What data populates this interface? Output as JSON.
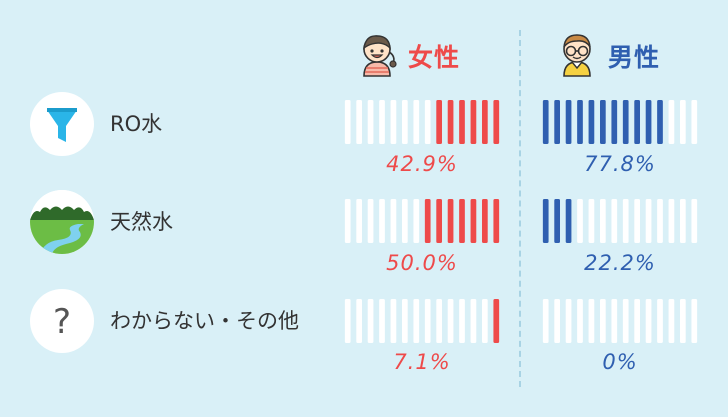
{
  "chart_data": {
    "type": "bar",
    "categories": [
      "RO水",
      "天然水",
      "わからない・その他"
    ],
    "series": [
      {
        "name": "女性",
        "values": [
          42.9,
          50.0,
          7.1
        ],
        "labels": [
          "42.9%",
          "50.0%",
          "7.1%"
        ],
        "color": "#ee4a4a"
      },
      {
        "name": "男性",
        "values": [
          77.8,
          22.2,
          0
        ],
        "labels": [
          "77.8%",
          "22.2%",
          "0%"
        ],
        "color": "#2f5fb0"
      }
    ],
    "ylim": [
      0,
      100
    ],
    "segments": 14,
    "empty_color": "#ffffff"
  },
  "icons": {
    "female": "girl-avatar-icon",
    "male": "boy-with-glasses-avatar-icon",
    "rows": [
      "funnel-icon",
      "river-landscape-icon",
      "question-mark-icon"
    ]
  },
  "row_icon_question": "?"
}
